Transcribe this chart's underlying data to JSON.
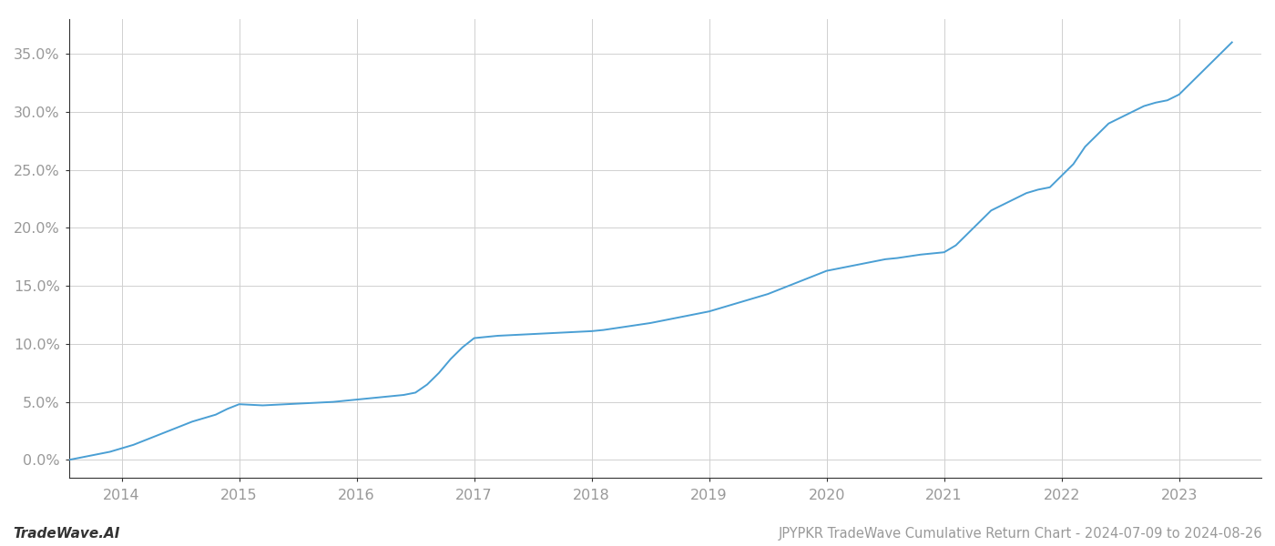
{
  "title": "JPYPKR TradeWave Cumulative Return Chart - 2024-07-09 to 2024-08-26",
  "watermark": "TradeWave.AI",
  "line_color": "#4a9fd4",
  "background_color": "#ffffff",
  "grid_color": "#d0d0d0",
  "x_years": [
    2014,
    2015,
    2016,
    2017,
    2018,
    2019,
    2020,
    2021,
    2022,
    2023
  ],
  "x_values": [
    2013.55,
    2013.6,
    2013.7,
    2013.8,
    2013.9,
    2014.0,
    2014.1,
    2014.2,
    2014.3,
    2014.4,
    2014.5,
    2014.6,
    2014.7,
    2014.8,
    2014.9,
    2015.0,
    2015.1,
    2015.2,
    2015.3,
    2015.4,
    2015.5,
    2015.6,
    2015.7,
    2015.8,
    2015.9,
    2016.0,
    2016.1,
    2016.2,
    2016.3,
    2016.4,
    2016.5,
    2016.6,
    2016.7,
    2016.8,
    2016.9,
    2017.0,
    2017.1,
    2017.2,
    2017.3,
    2017.4,
    2017.5,
    2017.6,
    2017.7,
    2017.8,
    2017.9,
    2018.0,
    2018.1,
    2018.2,
    2018.3,
    2018.4,
    2018.5,
    2018.6,
    2018.7,
    2018.8,
    2018.9,
    2019.0,
    2019.1,
    2019.2,
    2019.3,
    2019.4,
    2019.5,
    2019.6,
    2019.7,
    2019.8,
    2019.9,
    2020.0,
    2020.1,
    2020.2,
    2020.3,
    2020.4,
    2020.5,
    2020.6,
    2020.7,
    2020.8,
    2020.9,
    2021.0,
    2021.1,
    2021.2,
    2021.3,
    2021.4,
    2021.5,
    2021.6,
    2021.7,
    2021.8,
    2021.9,
    2022.0,
    2022.1,
    2022.2,
    2022.3,
    2022.4,
    2022.5,
    2022.6,
    2022.7,
    2022.8,
    2022.9,
    2023.0,
    2023.1,
    2023.2,
    2023.3,
    2023.4,
    2023.45
  ],
  "y_values": [
    0.0,
    0.1,
    0.3,
    0.5,
    0.7,
    1.0,
    1.3,
    1.7,
    2.1,
    2.5,
    2.9,
    3.3,
    3.6,
    3.9,
    4.4,
    4.8,
    4.75,
    4.7,
    4.75,
    4.8,
    4.85,
    4.9,
    4.95,
    5.0,
    5.1,
    5.2,
    5.3,
    5.4,
    5.5,
    5.6,
    5.8,
    6.5,
    7.5,
    8.7,
    9.7,
    10.5,
    10.6,
    10.7,
    10.75,
    10.8,
    10.85,
    10.9,
    10.95,
    11.0,
    11.05,
    11.1,
    11.2,
    11.35,
    11.5,
    11.65,
    11.8,
    12.0,
    12.2,
    12.4,
    12.6,
    12.8,
    13.1,
    13.4,
    13.7,
    14.0,
    14.3,
    14.7,
    15.1,
    15.5,
    15.9,
    16.3,
    16.5,
    16.7,
    16.9,
    17.1,
    17.3,
    17.4,
    17.55,
    17.7,
    17.8,
    17.9,
    18.5,
    19.5,
    20.5,
    21.5,
    22.0,
    22.5,
    23.0,
    23.3,
    23.5,
    24.5,
    25.5,
    27.0,
    28.0,
    29.0,
    29.5,
    30.0,
    30.5,
    30.8,
    31.0,
    31.5,
    32.5,
    33.5,
    34.5,
    35.5,
    36.0
  ],
  "ylim": [
    -1.5,
    38
  ],
  "yticks": [
    0.0,
    5.0,
    10.0,
    15.0,
    20.0,
    25.0,
    30.0,
    35.0
  ],
  "xlim": [
    2013.55,
    2023.7
  ],
  "tick_label_color": "#999999",
  "spine_color": "#333333",
  "title_fontsize": 10.5,
  "watermark_fontsize": 11,
  "tick_fontsize": 11.5
}
